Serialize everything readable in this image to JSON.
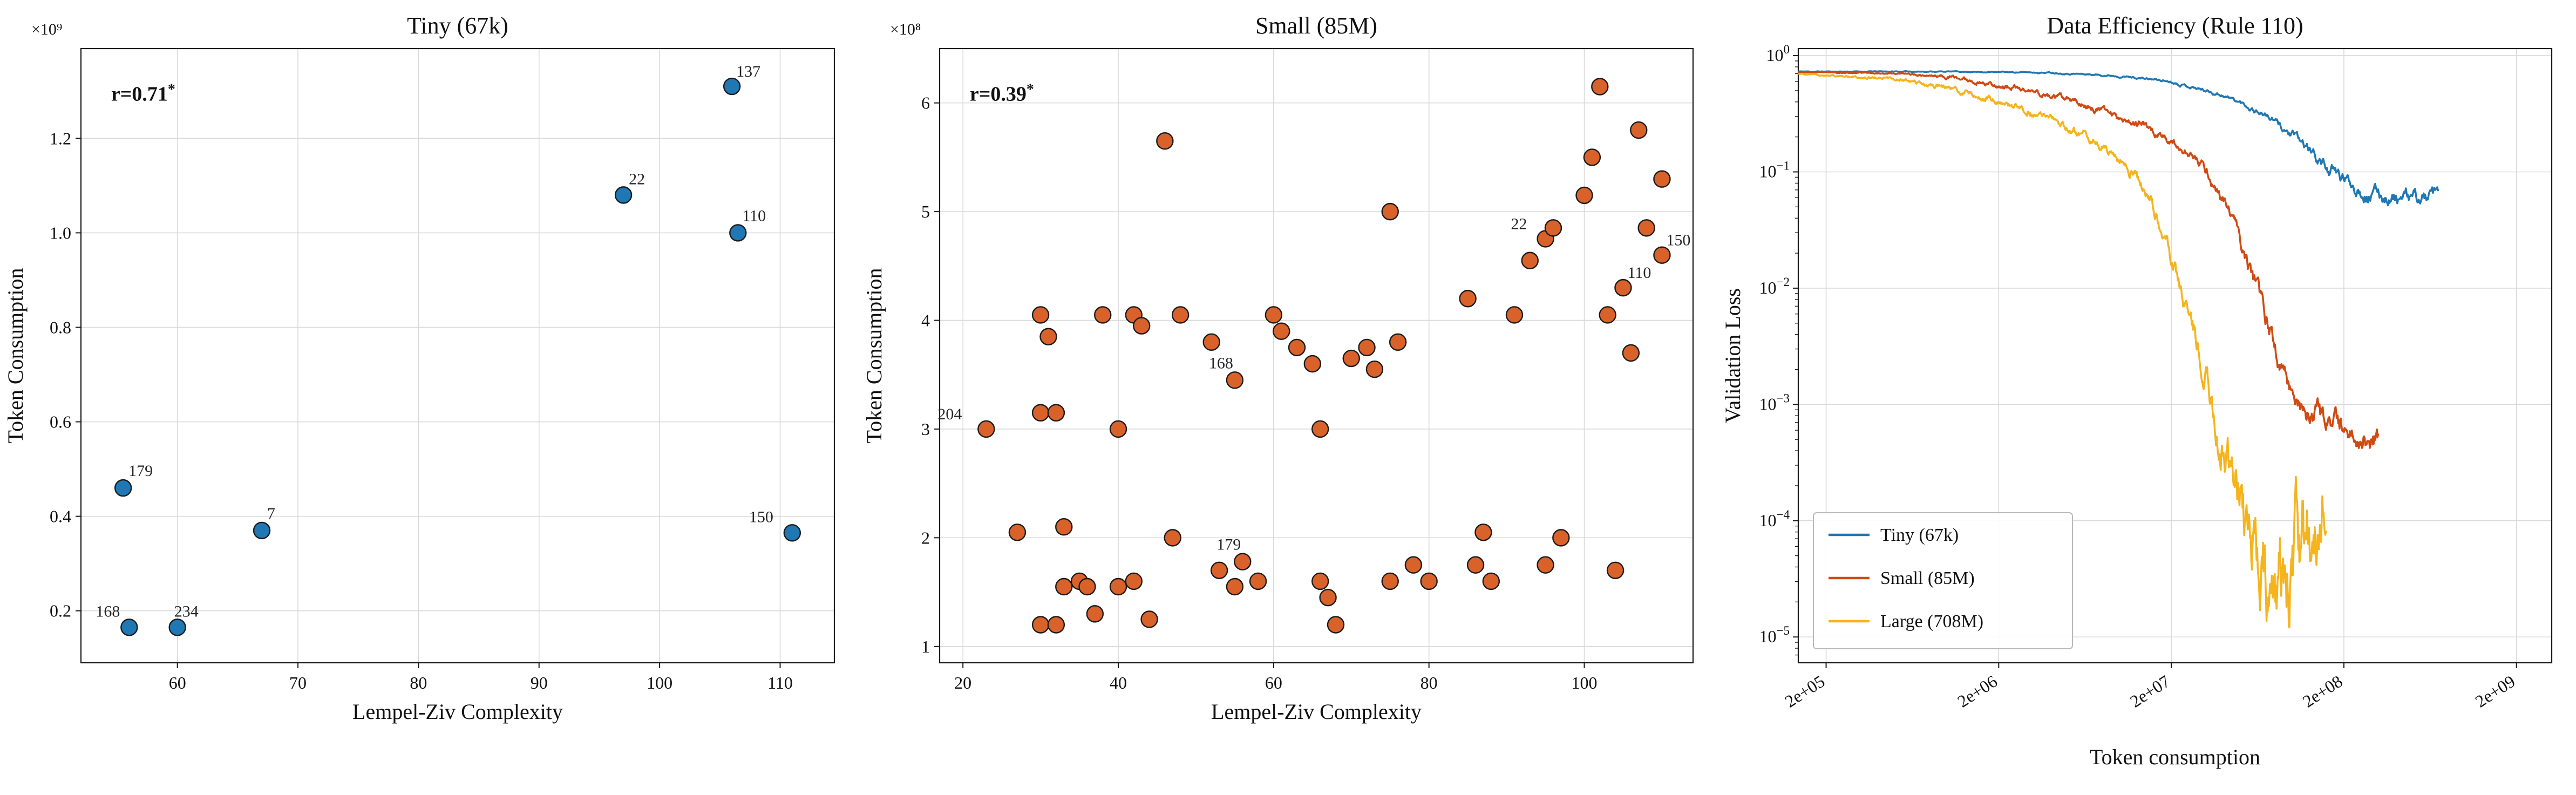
{
  "chart_data": [
    {
      "type": "scatter",
      "title": "Tiny (67k)",
      "xlabel": "Lempel-Ziv Complexity",
      "ylabel": "Token Consumption",
      "offset_text": "×10⁹",
      "annotation": {
        "text": "r=0.71",
        "sup": "*"
      },
      "point_color": "#1f77b4",
      "edge_color": "#1a1a1a",
      "grid": true,
      "xlim": [
        52,
        114.5
      ],
      "ylim": [
        0.09,
        1.39
      ],
      "xticks": [
        60,
        70,
        80,
        90,
        100,
        110
      ],
      "xtick_labels": [
        "60",
        "70",
        "80",
        "90",
        "100",
        "110"
      ],
      "yticks": [
        0.2,
        0.4,
        0.6,
        0.8,
        1.0,
        1.2
      ],
      "ytick_labels": [
        "0.2",
        "0.4",
        "0.6",
        "0.8",
        "1.0",
        "1.2"
      ],
      "points": [
        [
          55.5,
          0.46,
          "179",
          10,
          -22
        ],
        [
          67,
          0.37,
          "7",
          10,
          -22
        ],
        [
          56,
          0.165,
          "168",
          -62,
          -20
        ],
        [
          60,
          0.165,
          "234",
          -6,
          -20
        ],
        [
          97,
          1.08,
          "22",
          10,
          -20
        ],
        [
          106,
          1.31,
          "137",
          8,
          -18
        ],
        [
          106.5,
          1.0,
          "110",
          8,
          -22
        ],
        [
          111,
          0.365,
          "150",
          -80,
          -20
        ]
      ]
    },
    {
      "type": "scatter",
      "title": "Small (85M)",
      "xlabel": "Lempel-Ziv Complexity",
      "ylabel": "Token Consumption",
      "offset_text": "×10⁸",
      "annotation": {
        "text": "r=0.39",
        "sup": "*"
      },
      "point_color": "#d9622b",
      "edge_color": "#1a1a1a",
      "grid": true,
      "xlim": [
        17,
        114
      ],
      "ylim": [
        0.85,
        6.5
      ],
      "xticks": [
        20,
        40,
        60,
        80,
        100
      ],
      "xtick_labels": [
        "20",
        "40",
        "60",
        "80",
        "100"
      ],
      "yticks": [
        1,
        2,
        3,
        4,
        5,
        6
      ],
      "ytick_labels": [
        "1",
        "2",
        "3",
        "4",
        "5",
        "6"
      ],
      "points": [
        [
          23,
          3.0,
          "204",
          -90,
          -18
        ],
        [
          27,
          2.05
        ],
        [
          30,
          4.05
        ],
        [
          31,
          3.85
        ],
        [
          30,
          3.15
        ],
        [
          32,
          3.15
        ],
        [
          30,
          1.2
        ],
        [
          32,
          1.2
        ],
        [
          33,
          2.1
        ],
        [
          33,
          1.55
        ],
        [
          35,
          1.6
        ],
        [
          36,
          1.55
        ],
        [
          37,
          1.3
        ],
        [
          38,
          4.05
        ],
        [
          40,
          3.0
        ],
        [
          42,
          4.05
        ],
        [
          43,
          3.95
        ],
        [
          40,
          1.55
        ],
        [
          42,
          1.6
        ],
        [
          44,
          1.25
        ],
        [
          46,
          5.65
        ],
        [
          47,
          2.0
        ],
        [
          48,
          4.05
        ],
        [
          52,
          3.8
        ],
        [
          55,
          3.45,
          "168",
          -48,
          -22
        ],
        [
          53,
          1.7
        ],
        [
          55,
          1.55
        ],
        [
          56,
          1.78,
          "179",
          -48,
          -22
        ],
        [
          58,
          1.6
        ],
        [
          60,
          4.05
        ],
        [
          61,
          3.9
        ],
        [
          63,
          3.75
        ],
        [
          65,
          3.6
        ],
        [
          66,
          3.0
        ],
        [
          66,
          1.6
        ],
        [
          67,
          1.45
        ],
        [
          68,
          1.2
        ],
        [
          70,
          3.65
        ],
        [
          72,
          3.75
        ],
        [
          73,
          3.55
        ],
        [
          75,
          5.0
        ],
        [
          76,
          3.8
        ],
        [
          75,
          1.6
        ],
        [
          78,
          1.75
        ],
        [
          80,
          1.6
        ],
        [
          85,
          4.2
        ],
        [
          87,
          2.05
        ],
        [
          86,
          1.75
        ],
        [
          88,
          1.6
        ],
        [
          91,
          4.05
        ],
        [
          93,
          4.55
        ],
        [
          95,
          4.75,
          "22",
          -64,
          -18
        ],
        [
          96,
          4.85
        ],
        [
          95,
          1.75
        ],
        [
          97,
          2.0
        ],
        [
          100,
          5.15
        ],
        [
          101,
          5.5
        ],
        [
          102,
          6.15
        ],
        [
          103,
          4.05
        ],
        [
          104,
          1.7
        ],
        [
          105,
          4.3,
          "110",
          8,
          -18
        ],
        [
          106,
          3.7
        ],
        [
          107,
          5.75
        ],
        [
          108,
          4.85
        ],
        [
          110,
          5.3
        ],
        [
          110,
          4.6,
          "150",
          8,
          -18
        ]
      ]
    },
    {
      "type": "line",
      "xscale": "log",
      "yscale": "log",
      "rotate_xticks": true,
      "title": "Data Efficiency (Rule 110)",
      "xlabel": "Token consumption",
      "ylabel": "Validation Loss",
      "grid": true,
      "xlim": [
        138000,
        3200000000
      ],
      "ylim": [
        6e-06,
        1.15
      ],
      "xticks": [
        200000,
        2000000,
        20000000,
        200000000,
        2000000000
      ],
      "xtick_labels": [
        "2e+05",
        "2e+06",
        "2e+07",
        "2e+08",
        "2e+09"
      ],
      "yticks": [
        1,
        0.1,
        0.01,
        0.001,
        0.0001,
        1e-05
      ],
      "ytick_exponents": [
        "0",
        "−1",
        "−2",
        "−3",
        "−4",
        "−5"
      ],
      "series": [
        {
          "name": "Tiny (67k)",
          "color": "#1f77b4",
          "seed": 11,
          "anchors": [
            [
              5.14,
              0.73,
              0.003
            ],
            [
              6.0,
              0.73,
              0.004
            ],
            [
              6.6,
              0.715,
              0.006
            ],
            [
              7.0,
              0.67,
              0.009
            ],
            [
              7.3,
              0.6,
              0.013
            ],
            [
              7.6,
              0.46,
              0.02
            ],
            [
              7.85,
              0.31,
              0.03
            ],
            [
              8.05,
              0.18,
              0.05
            ],
            [
              8.25,
              0.095,
              0.07
            ],
            [
              8.45,
              0.066,
              0.075
            ],
            [
              8.65,
              0.058,
              0.075
            ],
            [
              8.85,
              0.06,
              0.07
            ]
          ]
        },
        {
          "name": "Small (85M)",
          "color": "#d04a12",
          "seed": 23,
          "anchors": [
            [
              5.14,
              0.72,
              0.003
            ],
            [
              5.7,
              0.705,
              0.006
            ],
            [
              6.0,
              0.66,
              0.018
            ],
            [
              6.3,
              0.56,
              0.028
            ],
            [
              6.6,
              0.45,
              0.03
            ],
            [
              6.9,
              0.34,
              0.032
            ],
            [
              7.15,
              0.25,
              0.035
            ],
            [
              7.35,
              0.165,
              0.04
            ],
            [
              7.5,
              0.105,
              0.05
            ],
            [
              7.65,
              0.042,
              0.06
            ],
            [
              7.8,
              0.009,
              0.09
            ],
            [
              7.95,
              0.0019,
              0.11
            ],
            [
              8.1,
              0.00078,
              0.12
            ],
            [
              8.3,
              0.00058,
              0.12
            ],
            [
              8.5,
              0.00052,
              0.12
            ]
          ]
        },
        {
          "name": "Large (708M)",
          "color": "#f5b41d",
          "seed": 47,
          "anchors": [
            [
              5.14,
              0.7,
              0.005
            ],
            [
              5.7,
              0.63,
              0.015
            ],
            [
              6.0,
              0.53,
              0.025
            ],
            [
              6.3,
              0.41,
              0.03
            ],
            [
              6.6,
              0.29,
              0.035
            ],
            [
              6.85,
              0.19,
              0.04
            ],
            [
              7.05,
              0.115,
              0.05
            ],
            [
              7.2,
              0.048,
              0.07
            ],
            [
              7.35,
              0.011,
              0.1
            ],
            [
              7.5,
              0.0019,
              0.15
            ],
            [
              7.6,
              0.00042,
              0.22
            ],
            [
              7.7,
              0.00013,
              0.32
            ],
            [
              7.8,
              4.5e-05,
              0.42
            ],
            [
              7.9,
              2.7e-05,
              0.5
            ],
            [
              8.0,
              3e-05,
              0.52
            ],
            [
              8.1,
              6e-05,
              0.45
            ],
            [
              8.2,
              0.00016,
              0.3
            ]
          ]
        }
      ],
      "legend": {
        "position": "lower left",
        "entries": [
          "Tiny (67k)",
          "Small (85M)",
          "Large (708M)"
        ]
      }
    }
  ],
  "style": {
    "grid_color": "#d9d9d9",
    "spine_color": "#1a1a1a",
    "text_color": "#111111",
    "label_color": "#262626",
    "background": "#ffffff"
  }
}
